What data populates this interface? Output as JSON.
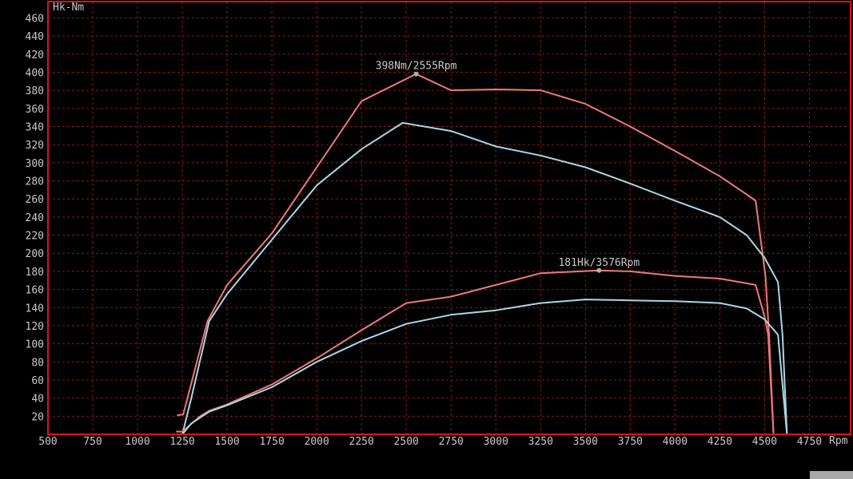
{
  "chart_data": {
    "type": "line",
    "ylabel": "Hk-Nm",
    "xlabel": "Rpm",
    "xlim": [
      500,
      4980
    ],
    "ylim": [
      0,
      478
    ],
    "grid": true,
    "xticks": [
      500,
      750,
      1000,
      1250,
      1500,
      1750,
      2000,
      2250,
      2500,
      2750,
      3000,
      3250,
      3500,
      3750,
      4000,
      4250,
      4500,
      4750
    ],
    "yticks": [
      20,
      40,
      60,
      80,
      100,
      120,
      140,
      160,
      180,
      200,
      220,
      240,
      260,
      280,
      300,
      320,
      340,
      360,
      380,
      400,
      420,
      440,
      460
    ],
    "colors": {
      "background": "#000000",
      "frame": "#e01010",
      "grid": "#8a1a1a",
      "text": "#c8c8c8",
      "red": "#f07878",
      "blue": "#a8d8e8"
    },
    "series": [
      {
        "color": "#f07878",
        "x": [
          1220,
          1255,
          1390,
          1500,
          1750,
          2000,
          2250,
          2555,
          2750,
          3000,
          3250,
          3500,
          3750,
          4000,
          4250,
          4400,
          4450,
          4505,
          4525,
          4550
        ],
        "y": [
          21,
          22,
          125,
          165,
          222,
          295,
          368,
          398,
          380,
          381,
          380,
          365,
          340,
          313,
          285,
          265,
          258,
          175,
          110,
          0
        ]
      },
      {
        "color": "#a8d8e8",
        "x": [
          1250,
          1300,
          1400,
          1500,
          1750,
          2000,
          2250,
          2480,
          2750,
          3000,
          3250,
          3500,
          3750,
          4000,
          4250,
          4400,
          4500,
          4575,
          4600,
          4625
        ],
        "y": [
          0,
          40,
          125,
          155,
          215,
          275,
          315,
          344,
          335,
          318,
          308,
          295,
          277,
          258,
          240,
          220,
          195,
          168,
          110,
          0
        ]
      },
      {
        "color": "#f07878",
        "x": [
          1215,
          1250,
          1350,
          1400,
          1500,
          1750,
          2000,
          2250,
          2500,
          2750,
          3000,
          3250,
          3576,
          3750,
          4000,
          4250,
          4450,
          4500,
          4520,
          4550
        ],
        "y": [
          3,
          3,
          20,
          26,
          33,
          55,
          84,
          115,
          145,
          152,
          165,
          178,
          181,
          180,
          175,
          172,
          165,
          130,
          110,
          0
        ]
      },
      {
        "color": "#a8d8e8",
        "x": [
          1250,
          1300,
          1400,
          1500,
          1750,
          2000,
          2250,
          2500,
          2750,
          3000,
          3250,
          3500,
          3750,
          4000,
          4250,
          4400,
          4500,
          4575,
          4625
        ],
        "y": [
          0,
          12,
          25,
          32,
          52,
          80,
          103,
          122,
          132,
          137,
          145,
          149,
          148,
          147,
          145,
          139,
          127,
          110,
          0
        ]
      }
    ],
    "annotations": [
      {
        "text": "398Nm/2555Rpm",
        "x": 2555,
        "y": 398
      },
      {
        "text": "181Hk/3576Rpm",
        "x": 3576,
        "y": 181
      }
    ]
  }
}
